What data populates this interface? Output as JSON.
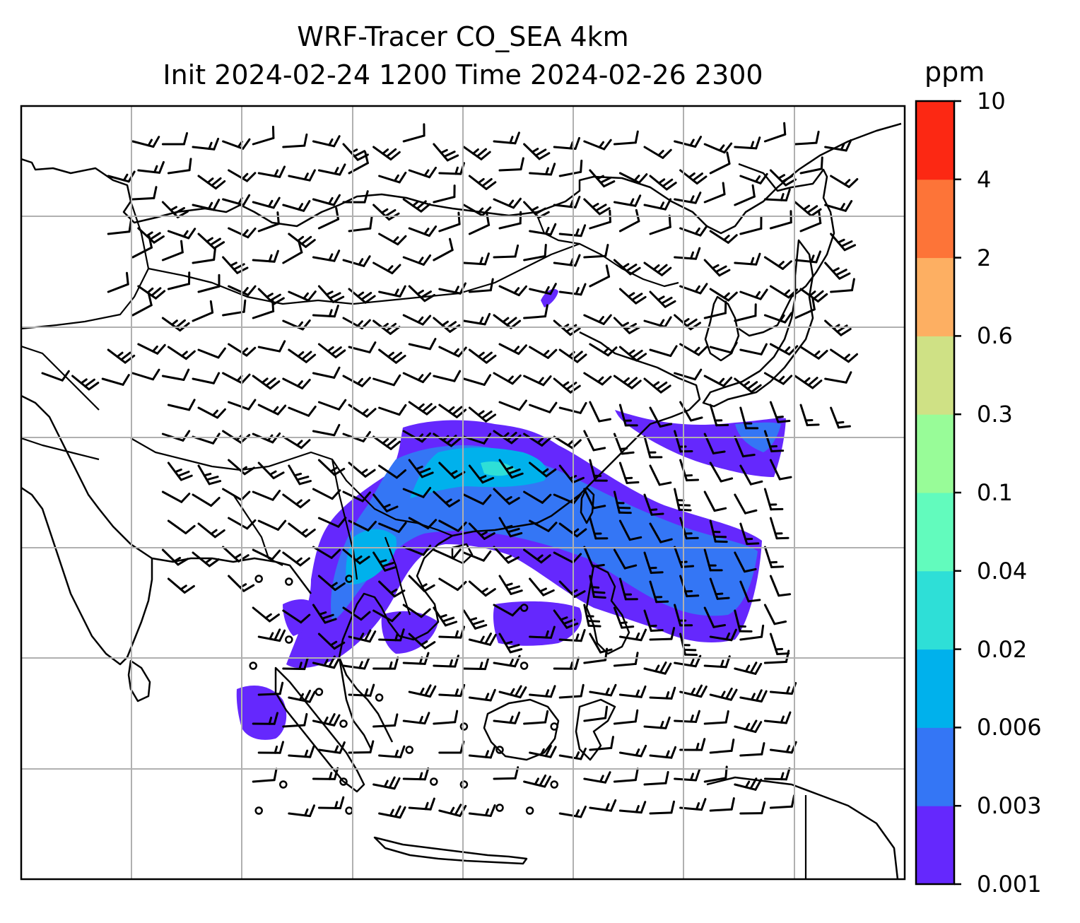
{
  "figure": {
    "title_line1": "WRF-Tracer CO_SEA 4km",
    "title_line2": "Init 2024-02-24 1200 Time 2024-02-26 2300"
  },
  "colorbar": {
    "unit": "ppm",
    "levels": [
      "0.001",
      "0.003",
      "0.006",
      "0.02",
      "0.04",
      "0.1",
      "0.3",
      "0.6",
      "2",
      "4",
      "10"
    ],
    "colors": [
      "#6528fd",
      "#3476f5",
      "#00b1ec",
      "#2edfd7",
      "#62fbbd",
      "#98fc98",
      "#cfe185",
      "#fdaf62",
      "#fd7438",
      "#fc2813"
    ]
  },
  "map": {
    "layers": [
      "coastlines",
      "country-borders",
      "graticule",
      "co-tracer-contours",
      "wind-barbs"
    ]
  }
}
